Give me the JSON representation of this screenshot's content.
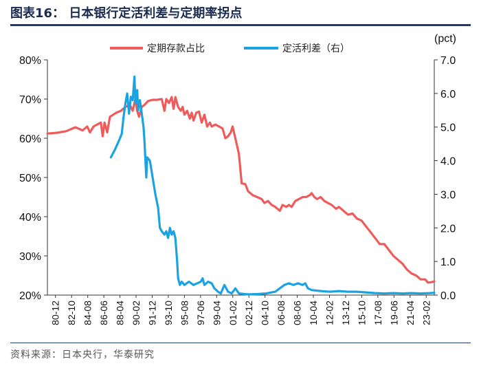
{
  "header": {
    "title": "图表16： 日本银行定活利差与定期率拐点"
  },
  "footer": {
    "source": "资料来源：日本央行，华泰研究"
  },
  "chart_data": {
    "type": "line",
    "title": "日本银行定活利差与定期率拐点",
    "left_axis": {
      "ylim": [
        20,
        80
      ],
      "ticks": [
        "20%",
        "30%",
        "40%",
        "50%",
        "60%",
        "70%",
        "80%"
      ]
    },
    "right_axis": {
      "unit": "(pct)",
      "ylim": [
        0,
        7
      ],
      "ticks": [
        "0.0",
        "1.0",
        "2.0",
        "3.0",
        "4.0",
        "5.0",
        "6.0",
        "7.0"
      ]
    },
    "xlim": [
      1980.917,
      2023.5
    ],
    "x_tick_labels": [
      "80-12",
      "82-10",
      "84-08",
      "86-06",
      "88-04",
      "90-02",
      "91-12",
      "93-10",
      "95-08",
      "97-06",
      "99-04",
      "01-02",
      "02-12",
      "04-10",
      "06-08",
      "08-06",
      "10-04",
      "12-02",
      "13-12",
      "15-10",
      "17-08",
      "19-06",
      "21-04",
      "23-02"
    ],
    "legend": [
      "定期存款占比",
      "定活利差（右）"
    ],
    "series": [
      {
        "name": "定期存款占比",
        "axis": "left",
        "color": "#ef5b5b",
        "points": [
          [
            1980.92,
            61.2
          ],
          [
            1982.0,
            61.4
          ],
          [
            1983.0,
            61.8
          ],
          [
            1984.0,
            62.8
          ],
          [
            1984.8,
            62.0
          ],
          [
            1985.3,
            63.0
          ],
          [
            1985.6,
            61.5
          ],
          [
            1986.0,
            63.0
          ],
          [
            1986.8,
            64.0
          ],
          [
            1987.0,
            60.5
          ],
          [
            1987.2,
            64.0
          ],
          [
            1987.5,
            61.5
          ],
          [
            1987.8,
            65.5
          ],
          [
            1988.5,
            66.5
          ],
          [
            1989.0,
            67.0
          ],
          [
            1989.5,
            68.0
          ],
          [
            1990.0,
            68.5
          ],
          [
            1990.3,
            67.0
          ],
          [
            1990.6,
            70.0
          ],
          [
            1990.8,
            67.0
          ],
          [
            1991.0,
            65.5
          ],
          [
            1991.3,
            68.0
          ],
          [
            1991.6,
            68.5
          ],
          [
            1992.0,
            69.5
          ],
          [
            1992.5,
            69.8
          ],
          [
            1993.0,
            69.8
          ],
          [
            1993.5,
            70.0
          ],
          [
            1993.8,
            67.0
          ],
          [
            1994.0,
            70.0
          ],
          [
            1994.3,
            69.0
          ],
          [
            1994.6,
            70.5
          ],
          [
            1994.8,
            67.5
          ],
          [
            1995.0,
            70.5
          ],
          [
            1995.3,
            68.0
          ],
          [
            1995.6,
            67.0
          ],
          [
            1995.8,
            68.0
          ],
          [
            1996.0,
            66.0
          ],
          [
            1996.3,
            67.0
          ],
          [
            1996.6,
            65.0
          ],
          [
            1996.8,
            66.5
          ],
          [
            1997.0,
            64.5
          ],
          [
            1997.3,
            66.5
          ],
          [
            1997.6,
            66.8
          ],
          [
            1997.9,
            64.0
          ],
          [
            1998.2,
            66.0
          ],
          [
            1998.5,
            63.0
          ],
          [
            1998.8,
            64.0
          ],
          [
            1999.0,
            63.0
          ],
          [
            1999.4,
            63.5
          ],
          [
            1999.8,
            63.0
          ],
          [
            2000.2,
            62.5
          ],
          [
            2000.5,
            60.0
          ],
          [
            2000.8,
            60.5
          ],
          [
            2001.1,
            61.5
          ],
          [
            2001.3,
            63.0
          ],
          [
            2001.7,
            59.0
          ],
          [
            2002.0,
            56.0
          ],
          [
            2002.3,
            48.5
          ],
          [
            2002.7,
            48.3
          ],
          [
            2003.0,
            46.5
          ],
          [
            2003.5,
            45.5
          ],
          [
            2004.0,
            45.0
          ],
          [
            2004.5,
            44.5
          ],
          [
            2004.8,
            43.5
          ],
          [
            2005.2,
            44.0
          ],
          [
            2005.6,
            43.0
          ],
          [
            2006.0,
            42.5
          ],
          [
            2006.5,
            41.5
          ],
          [
            2006.8,
            43.0
          ],
          [
            2007.2,
            42.5
          ],
          [
            2007.5,
            43.0
          ],
          [
            2007.8,
            42.5
          ],
          [
            2008.2,
            44.0
          ],
          [
            2008.6,
            44.5
          ],
          [
            2009.0,
            45.0
          ],
          [
            2009.4,
            45.0
          ],
          [
            2009.8,
            45.5
          ],
          [
            2010.0,
            46.0
          ],
          [
            2010.3,
            45.0
          ],
          [
            2010.6,
            44.5
          ],
          [
            2011.0,
            45.0
          ],
          [
            2011.4,
            44.0
          ],
          [
            2011.8,
            43.5
          ],
          [
            2012.2,
            43.0
          ],
          [
            2012.7,
            42.0
          ],
          [
            2013.0,
            42.5
          ],
          [
            2013.5,
            41.5
          ],
          [
            2014.0,
            40.5
          ],
          [
            2014.5,
            40.8
          ],
          [
            2015.0,
            39.5
          ],
          [
            2015.5,
            39.0
          ],
          [
            2016.0,
            37.5
          ],
          [
            2016.5,
            36.0
          ],
          [
            2017.0,
            34.5
          ],
          [
            2017.5,
            33.0
          ],
          [
            2018.0,
            33.0
          ],
          [
            2018.5,
            31.5
          ],
          [
            2019.0,
            30.0
          ],
          [
            2019.5,
            29.0
          ],
          [
            2020.0,
            28.0
          ],
          [
            2020.5,
            26.5
          ],
          [
            2021.0,
            25.5
          ],
          [
            2021.5,
            25.0
          ],
          [
            2022.0,
            24.0
          ],
          [
            2022.5,
            24.0
          ],
          [
            2022.8,
            23.2
          ],
          [
            2023.2,
            23.3
          ],
          [
            2023.5,
            23.5
          ]
        ]
      },
      {
        "name": "定活利差（右）",
        "axis": "right",
        "color": "#1aa3e0",
        "points": [
          [
            1987.9,
            4.1
          ],
          [
            1988.3,
            4.3
          ],
          [
            1988.8,
            4.6
          ],
          [
            1989.1,
            4.8
          ],
          [
            1989.3,
            5.3
          ],
          [
            1989.5,
            5.7
          ],
          [
            1989.7,
            6.0
          ],
          [
            1989.9,
            5.4
          ],
          [
            1990.1,
            5.9
          ],
          [
            1990.3,
            5.8
          ],
          [
            1990.5,
            6.5
          ],
          [
            1990.6,
            5.7
          ],
          [
            1990.8,
            6.1
          ],
          [
            1990.9,
            5.5
          ],
          [
            1991.1,
            5.8
          ],
          [
            1991.3,
            5.4
          ],
          [
            1991.5,
            5.0
          ],
          [
            1991.6,
            4.6
          ],
          [
            1991.8,
            3.5
          ],
          [
            1991.9,
            4.1
          ],
          [
            1992.2,
            4.0
          ],
          [
            1992.5,
            3.5
          ],
          [
            1992.8,
            3.0
          ],
          [
            1993.1,
            2.6
          ],
          [
            1993.3,
            2.0
          ],
          [
            1993.5,
            1.9
          ],
          [
            1993.8,
            1.8
          ],
          [
            1994.0,
            1.9
          ],
          [
            1994.2,
            1.7
          ],
          [
            1994.4,
            2.0
          ],
          [
            1994.6,
            1.8
          ],
          [
            1994.8,
            1.9
          ],
          [
            1995.0,
            1.7
          ],
          [
            1995.2,
            1.0
          ],
          [
            1995.3,
            0.5
          ],
          [
            1995.5,
            0.3
          ],
          [
            1995.7,
            0.4
          ],
          [
            1996.0,
            0.3
          ],
          [
            1996.5,
            0.4
          ],
          [
            1997.0,
            0.3
          ],
          [
            1997.4,
            0.35
          ],
          [
            1997.8,
            0.4
          ],
          [
            1998.0,
            0.5
          ],
          [
            1998.2,
            0.3
          ],
          [
            1998.6,
            0.4
          ],
          [
            1999.0,
            0.35
          ],
          [
            1999.3,
            0.2
          ],
          [
            1999.7,
            0.1
          ],
          [
            2000.0,
            0.05
          ],
          [
            2000.4,
            0.3
          ],
          [
            2000.8,
            0.1
          ],
          [
            2001.2,
            0.05
          ],
          [
            2001.6,
            0.2
          ],
          [
            2002.0,
            0.05
          ],
          [
            2003.0,
            0.02
          ],
          [
            2004.0,
            0.03
          ],
          [
            2005.0,
            0.05
          ],
          [
            2006.0,
            0.1
          ],
          [
            2006.5,
            0.2
          ],
          [
            2007.0,
            0.3
          ],
          [
            2007.5,
            0.35
          ],
          [
            2008.0,
            0.3
          ],
          [
            2008.5,
            0.35
          ],
          [
            2009.0,
            0.3
          ],
          [
            2009.3,
            0.35
          ],
          [
            2009.6,
            0.2
          ],
          [
            2010.0,
            0.15
          ],
          [
            2011.0,
            0.12
          ],
          [
            2012.0,
            0.1
          ],
          [
            2013.0,
            0.12
          ],
          [
            2014.0,
            0.1
          ],
          [
            2015.0,
            0.1
          ],
          [
            2016.0,
            0.08
          ],
          [
            2017.0,
            0.06
          ],
          [
            2018.0,
            0.05
          ],
          [
            2019.0,
            0.06
          ],
          [
            2020.0,
            0.05
          ],
          [
            2021.0,
            0.06
          ],
          [
            2022.0,
            0.05
          ],
          [
            2023.0,
            0.06
          ],
          [
            2023.5,
            0.07
          ]
        ]
      }
    ]
  }
}
